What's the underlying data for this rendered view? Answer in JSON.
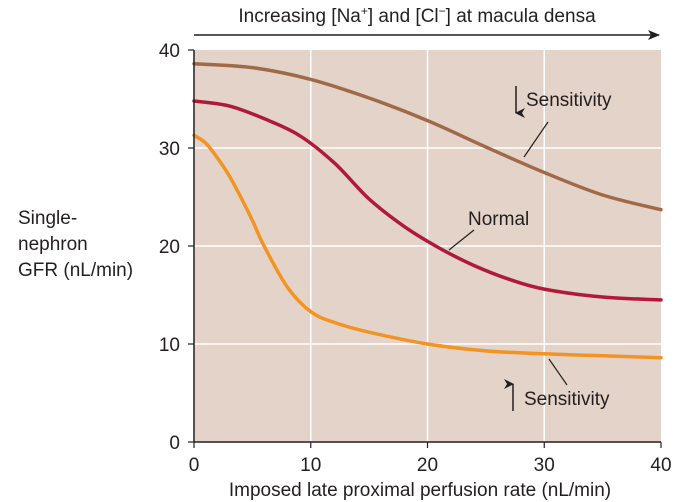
{
  "chart_data": {
    "type": "line",
    "title": "",
    "top_annotation": {
      "prefix": "Increasing [Na",
      "sup1": "+",
      "middle": "] and [Cl",
      "sup2": "−",
      "suffix": "] at macula densa"
    },
    "xlabel": "Imposed late proximal perfusion rate (nL/min)",
    "ylabel_lines": [
      "Single-",
      "nephron",
      "GFR (nL/min)"
    ],
    "xlim": [
      0,
      40
    ],
    "ylim": [
      0,
      40
    ],
    "x_ticks": [
      "0",
      "10",
      "20",
      "30",
      "40"
    ],
    "y_ticks": [
      "0",
      "10",
      "20",
      "30",
      "40"
    ],
    "grid": true,
    "legend": "none",
    "colors": {
      "plot_bg": "#e3d3c8",
      "decreased_sensitivity": "#a06a48",
      "normal": "#b01a3a",
      "increased_sensitivity": "#f29323",
      "grid": "#ffffff",
      "text": "#231f20"
    },
    "series": [
      {
        "name": "Sensitivity",
        "arrow": "down",
        "x": [
          0,
          5,
          10,
          15,
          20,
          25,
          30,
          35,
          40
        ],
        "y": [
          38.6,
          38.2,
          37.0,
          35.1,
          32.8,
          30.1,
          27.5,
          25.2,
          23.7
        ]
      },
      {
        "name": "Normal",
        "arrow": "none",
        "x": [
          0,
          3,
          6,
          9,
          12,
          15,
          18,
          21,
          24,
          27,
          30,
          35,
          40
        ],
        "y": [
          34.8,
          34.3,
          33.0,
          31.3,
          28.5,
          24.8,
          22.0,
          19.8,
          18.0,
          16.6,
          15.6,
          14.8,
          14.5
        ]
      },
      {
        "name": "Sensitivity",
        "arrow": "up",
        "x": [
          0,
          1,
          2,
          3,
          4,
          5,
          6,
          8,
          10,
          12,
          15,
          20,
          25,
          30,
          35,
          40
        ],
        "y": [
          31.3,
          30.5,
          29.0,
          27.2,
          25.0,
          22.6,
          20.0,
          15.8,
          13.3,
          12.2,
          11.2,
          10.0,
          9.3,
          9.0,
          8.8,
          8.6
        ]
      }
    ]
  }
}
